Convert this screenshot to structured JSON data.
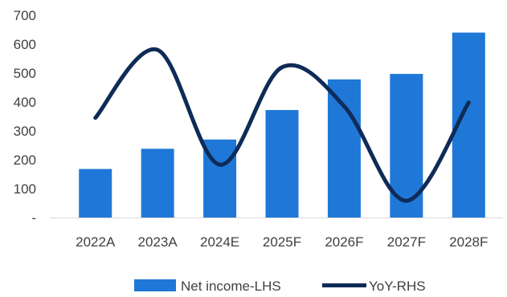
{
  "chart_data": {
    "type": "bar",
    "categories": [
      "2022A",
      "2023A",
      "2024E",
      "2025F",
      "2026F",
      "2027F",
      "2028F"
    ],
    "series": [
      {
        "name": "Net income-LHS",
        "type": "bar",
        "axis": "left",
        "color": "#1f78d8",
        "values": [
          168,
          238,
          270,
          372,
          478,
          497,
          640
        ]
      },
      {
        "name": "YoY-RHS",
        "type": "line",
        "axis": "right",
        "color": "#0f2b57",
        "smooth": true,
        "values": [
          345,
          580,
          183,
          520,
          385,
          58,
          398
        ]
      }
    ],
    "y_ticks": [
      "-",
      "100",
      "200",
      "300",
      "400",
      "500",
      "600",
      "700"
    ],
    "ylim": [
      0,
      700
    ],
    "right_axis_labels_shown": false,
    "grid": false,
    "legend_position": "bottom-center"
  }
}
